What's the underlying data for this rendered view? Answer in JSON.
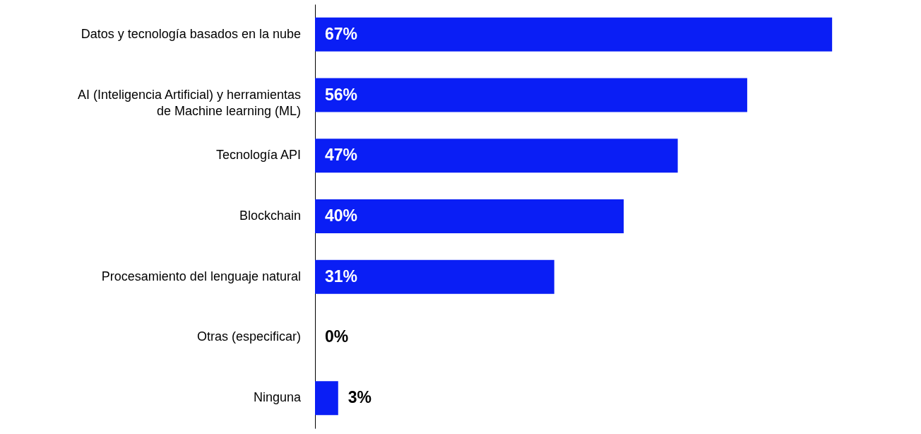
{
  "chart_data": {
    "type": "bar",
    "orientation": "horizontal",
    "categories": [
      "Datos y tecnología basados en la nube",
      "AI (Inteligencia Artificial) y herramientas de Machine learning (ML)",
      "Tecnología API",
      "Blockchain",
      "Procesamiento del lenguaje natural",
      "Otras (especificar)",
      "Ninguna"
    ],
    "values": [
      67,
      56,
      47,
      40,
      31,
      0,
      3
    ],
    "value_labels": [
      "67%",
      "56%",
      "47%",
      "40%",
      "31%",
      "0%",
      "3%"
    ],
    "color": "#0a1ef5"
  }
}
